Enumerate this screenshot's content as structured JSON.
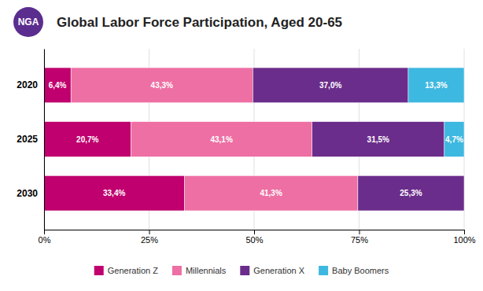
{
  "chart_data": {
    "type": "bar",
    "orientation": "horizontal",
    "stacked": true,
    "title": "Global Labor Force Participation, Aged 20-65",
    "annotations": [
      "NGA"
    ],
    "categories": [
      "2020",
      "2025",
      "2030"
    ],
    "series": [
      {
        "name": "Generation Z",
        "color": "#c0006e",
        "values": [
          6.4,
          20.7,
          33.4
        ],
        "value_labels": [
          "6,4%",
          "20,7%",
          "33,4%"
        ]
      },
      {
        "name": "Millennials",
        "color": "#ee6fa3",
        "values": [
          43.3,
          43.1,
          41.3
        ],
        "value_labels": [
          "43,3%",
          "43,1%",
          "41,3%"
        ]
      },
      {
        "name": "Generation X",
        "color": "#6b2d8b",
        "values": [
          37.0,
          31.5,
          25.3
        ],
        "value_labels": [
          "37,0%",
          "31,5%",
          "25,3%"
        ]
      },
      {
        "name": "Baby Boomers",
        "color": "#3db8e0",
        "values": [
          13.3,
          4.7,
          0.0
        ],
        "value_labels": [
          "13,3%",
          "4,7%",
          null
        ]
      }
    ],
    "xlim": [
      0,
      100
    ],
    "xticks": [
      {
        "value": 0,
        "label": "0%"
      },
      {
        "value": 25,
        "label": "25%"
      },
      {
        "value": 50,
        "label": "50%"
      },
      {
        "value": 75,
        "label": "75%"
      },
      {
        "value": 100,
        "label": "100%"
      }
    ],
    "data_labels": true,
    "grid": true,
    "legend": "bottom"
  }
}
